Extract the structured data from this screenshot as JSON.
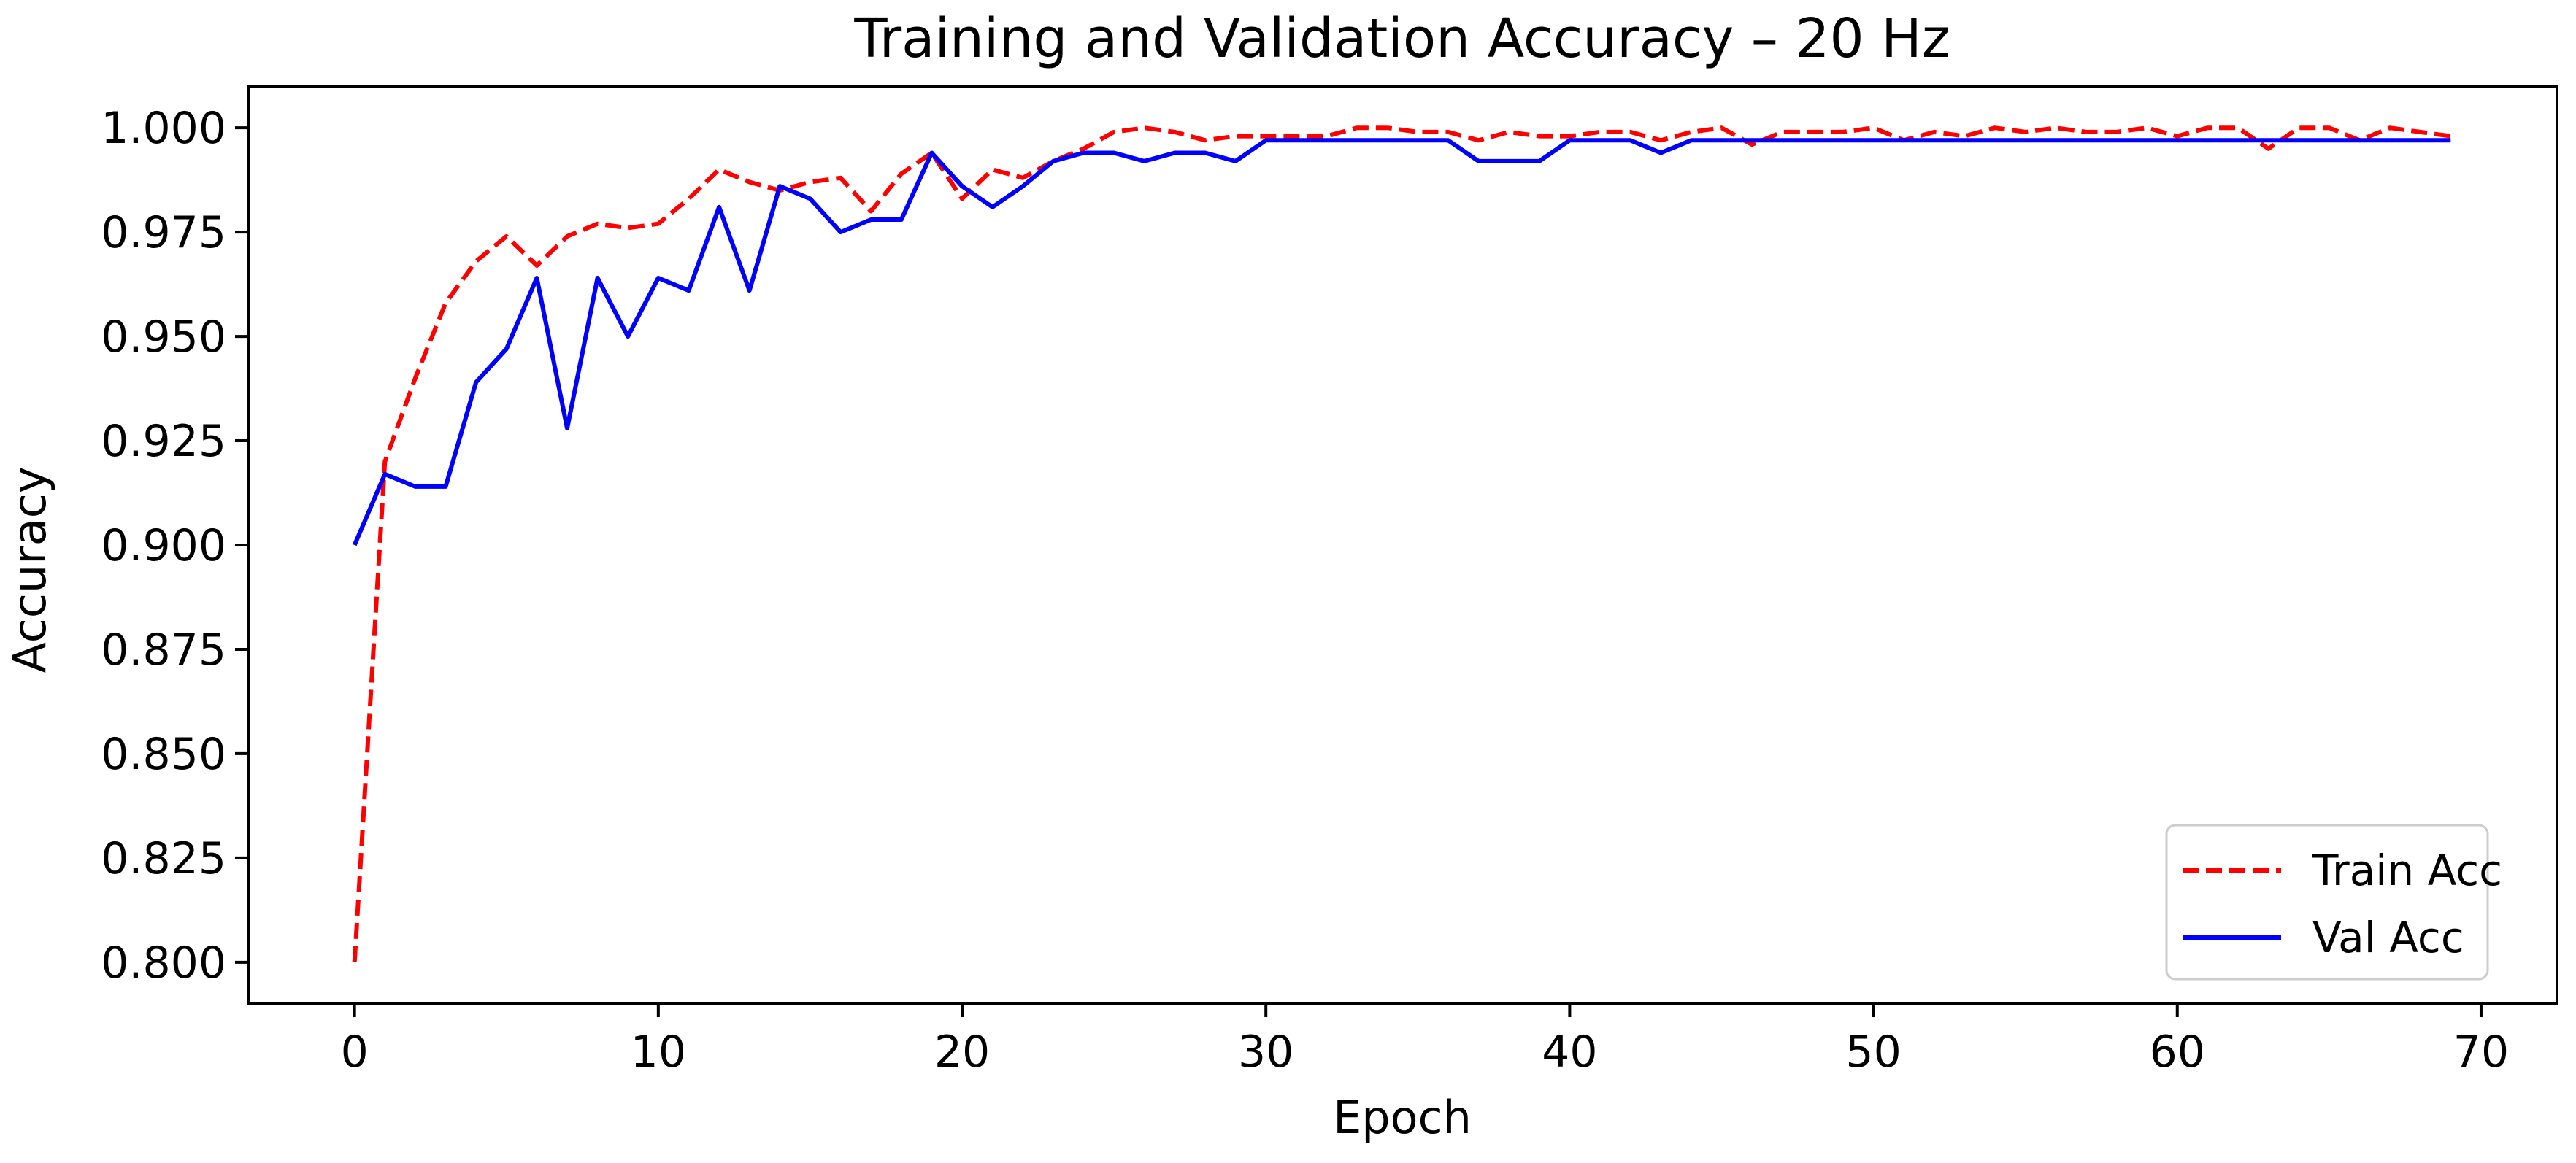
{
  "chart_data": {
    "type": "line",
    "title": "Training and Validation Accuracy – 20 Hz",
    "xlabel": "Epoch",
    "ylabel": "Accuracy",
    "xlim": [
      -3.5,
      72.5
    ],
    "ylim": [
      0.79,
      1.01
    ],
    "xticks": [
      0,
      10,
      20,
      30,
      40,
      50,
      60,
      70
    ],
    "yticks": [
      0.8,
      0.825,
      0.85,
      0.875,
      0.9,
      0.925,
      0.95,
      0.975,
      1.0
    ],
    "xtick_labels": [
      "0",
      "10",
      "20",
      "30",
      "40",
      "50",
      "60",
      "70"
    ],
    "ytick_labels": [
      "0.800",
      "0.825",
      "0.850",
      "0.875",
      "0.900",
      "0.925",
      "0.950",
      "0.975",
      "1.000"
    ],
    "grid": false,
    "legend_position": "lower-right",
    "series": [
      {
        "name": "Train Acc",
        "color": "#ff0000",
        "style": "dashed",
        "x": [
          0,
          1,
          2,
          3,
          4,
          5,
          6,
          7,
          8,
          9,
          10,
          11,
          12,
          13,
          14,
          15,
          16,
          17,
          18,
          19,
          20,
          21,
          22,
          23,
          24,
          25,
          26,
          27,
          28,
          29,
          30,
          31,
          32,
          33,
          34,
          35,
          36,
          37,
          38,
          39,
          40,
          41,
          42,
          43,
          44,
          45,
          46,
          47,
          48,
          49,
          50,
          51,
          52,
          53,
          54,
          55,
          56,
          57,
          58,
          59,
          60,
          61,
          62,
          63,
          64,
          65,
          66,
          67,
          68,
          69
        ],
        "values": [
          0.8,
          0.92,
          0.94,
          0.958,
          0.968,
          0.974,
          0.967,
          0.974,
          0.977,
          0.976,
          0.977,
          0.983,
          0.99,
          0.987,
          0.985,
          0.987,
          0.988,
          0.98,
          0.989,
          0.994,
          0.983,
          0.99,
          0.988,
          0.992,
          0.995,
          0.999,
          1.0,
          0.999,
          0.997,
          0.998,
          0.998,
          0.998,
          0.998,
          1.0,
          1.0,
          0.999,
          0.999,
          0.997,
          0.999,
          0.998,
          0.998,
          0.999,
          0.999,
          0.997,
          0.999,
          1.0,
          0.996,
          0.999,
          0.999,
          0.999,
          1.0,
          0.997,
          0.999,
          0.998,
          1.0,
          0.999,
          1.0,
          0.999,
          0.999,
          1.0,
          0.998,
          1.0,
          1.0,
          0.995,
          1.0,
          1.0,
          0.997,
          1.0,
          0.999,
          0.998
        ]
      },
      {
        "name": "Val Acc",
        "color": "#0000ff",
        "style": "solid",
        "x": [
          0,
          1,
          2,
          3,
          4,
          5,
          6,
          7,
          8,
          9,
          10,
          11,
          12,
          13,
          14,
          15,
          16,
          17,
          18,
          19,
          20,
          21,
          22,
          23,
          24,
          25,
          26,
          27,
          28,
          29,
          30,
          31,
          32,
          33,
          34,
          35,
          36,
          37,
          38,
          39,
          40,
          41,
          42,
          43,
          44,
          45,
          46,
          47,
          48,
          49,
          50,
          51,
          52,
          53,
          54,
          55,
          56,
          57,
          58,
          59,
          60,
          61,
          62,
          63,
          64,
          65,
          66,
          67,
          68,
          69
        ],
        "values": [
          0.9,
          0.917,
          0.914,
          0.914,
          0.939,
          0.947,
          0.964,
          0.928,
          0.964,
          0.95,
          0.964,
          0.961,
          0.981,
          0.961,
          0.986,
          0.983,
          0.975,
          0.978,
          0.978,
          0.994,
          0.986,
          0.981,
          0.986,
          0.992,
          0.994,
          0.994,
          0.992,
          0.994,
          0.994,
          0.992,
          0.997,
          0.997,
          0.997,
          0.997,
          0.997,
          0.997,
          0.997,
          0.992,
          0.992,
          0.992,
          0.997,
          0.997,
          0.997,
          0.994,
          0.997,
          0.997,
          0.997,
          0.997,
          0.997,
          0.997,
          0.997,
          0.997,
          0.997,
          0.997,
          0.997,
          0.997,
          0.997,
          0.997,
          0.997,
          0.997,
          0.997,
          0.997,
          0.997,
          0.997,
          0.997,
          0.997,
          0.997,
          0.997,
          0.997,
          0.997
        ]
      }
    ]
  }
}
